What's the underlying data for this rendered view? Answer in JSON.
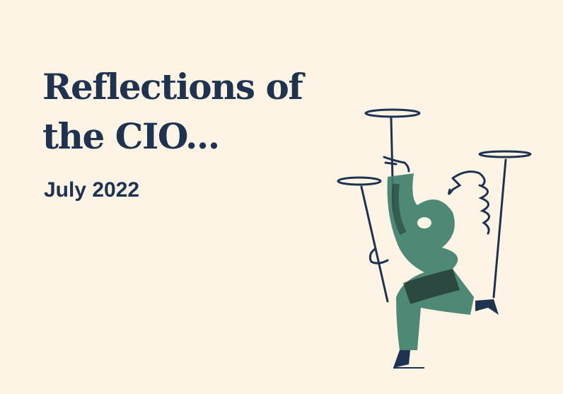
{
  "title": {
    "line1": "Reflections of",
    "line2": "the CIO..."
  },
  "date": "July 2022",
  "colors": {
    "background": "#fdf4e6",
    "text": "#1f3350",
    "figure_green": "#3f7f6d",
    "figure_dark": "#1d2e2a"
  },
  "illustration": "plate-spinning-figure"
}
